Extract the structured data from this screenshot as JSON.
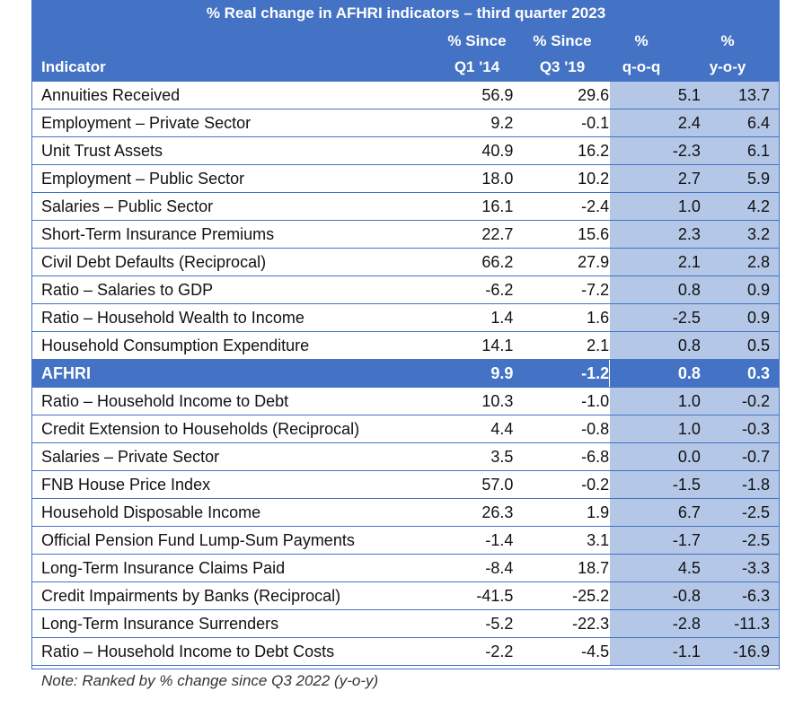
{
  "chart_data": {
    "type": "table",
    "title": "% Real change in AFHRI indicators – third quarter 2023",
    "columns": [
      {
        "key": "indicator",
        "line1": "",
        "line2": "Indicator"
      },
      {
        "key": "q1_14",
        "line1": "% Since",
        "line2": "Q1 '14"
      },
      {
        "key": "q3_19",
        "line1": "% Since",
        "line2": "Q3 '19"
      },
      {
        "key": "qoq",
        "line1": "%",
        "line2": "q-o-q"
      },
      {
        "key": "yoy",
        "line1": "%",
        "line2": "y-o-y"
      }
    ],
    "rows": [
      {
        "name": "Annuities Received",
        "q1_14": "56.9",
        "q3_19": "29.6",
        "qoq": "5.1",
        "yoy": "13.7"
      },
      {
        "name": "Employment – Private Sector",
        "q1_14": "9.2",
        "q3_19": "-0.1",
        "qoq": "2.4",
        "yoy": "6.4"
      },
      {
        "name": "Unit Trust Assets",
        "q1_14": "40.9",
        "q3_19": "16.2",
        "qoq": "-2.3",
        "yoy": "6.1"
      },
      {
        "name": "Employment – Public Sector",
        "q1_14": "18.0",
        "q3_19": "10.2",
        "qoq": "2.7",
        "yoy": "5.9"
      },
      {
        "name": "Salaries – Public Sector",
        "q1_14": "16.1",
        "q3_19": "-2.4",
        "qoq": "1.0",
        "yoy": "4.2"
      },
      {
        "name": "Short-Term Insurance Premiums",
        "q1_14": "22.7",
        "q3_19": "15.6",
        "qoq": "2.3",
        "yoy": "3.2"
      },
      {
        "name": "Civil Debt Defaults (Reciprocal)",
        "q1_14": "66.2",
        "q3_19": "27.9",
        "qoq": "2.1",
        "yoy": "2.8"
      },
      {
        "name": "Ratio – Salaries to GDP",
        "q1_14": "-6.2",
        "q3_19": "-7.2",
        "qoq": "0.8",
        "yoy": "0.9"
      },
      {
        "name": "Ratio – Household Wealth to Income",
        "q1_14": "1.4",
        "q3_19": "1.6",
        "qoq": "-2.5",
        "yoy": "0.9"
      },
      {
        "name": "Household Consumption Expenditure",
        "q1_14": "14.1",
        "q3_19": "2.1",
        "qoq": "0.8",
        "yoy": "0.5"
      },
      {
        "name": "AFHRI",
        "q1_14": "9.9",
        "q3_19": "-1.2",
        "qoq": "0.8",
        "yoy": "0.3",
        "highlight": true
      },
      {
        "name": "Ratio – Household Income to Debt",
        "q1_14": "10.3",
        "q3_19": "-1.0",
        "qoq": "1.0",
        "yoy": "-0.2"
      },
      {
        "name": "Credit Extension to Households (Reciprocal)",
        "q1_14": "4.4",
        "q3_19": "-0.8",
        "qoq": "1.0",
        "yoy": "-0.3"
      },
      {
        "name": "Salaries – Private Sector",
        "q1_14": "3.5",
        "q3_19": "-6.8",
        "qoq": "0.0",
        "yoy": "-0.7"
      },
      {
        "name": "FNB House Price Index",
        "q1_14": "57.0",
        "q3_19": "-0.2",
        "qoq": "-1.5",
        "yoy": "-1.8"
      },
      {
        "name": "Household Disposable Income",
        "q1_14": "26.3",
        "q3_19": "1.9",
        "qoq": "6.7",
        "yoy": "-2.5"
      },
      {
        "name": "Official Pension Fund Lump-Sum Payments",
        "q1_14": "-1.4",
        "q3_19": "3.1",
        "qoq": "-1.7",
        "yoy": "-2.5"
      },
      {
        "name": "Long-Term Insurance Claims Paid",
        "q1_14": "-8.4",
        "q3_19": "18.7",
        "qoq": "4.5",
        "yoy": "-3.3"
      },
      {
        "name": "Credit Impairments by Banks (Reciprocal)",
        "q1_14": "-41.5",
        "q3_19": "-25.2",
        "qoq": "-0.8",
        "yoy": "-6.3"
      },
      {
        "name": "Long-Term Insurance Surrenders",
        "q1_14": "-5.2",
        "q3_19": "-22.3",
        "qoq": "-2.8",
        "yoy": "-11.3"
      },
      {
        "name": "Ratio – Household Income to Debt Costs",
        "q1_14": "-2.2",
        "q3_19": "-4.5",
        "qoq": "-1.1",
        "yoy": "-16.9"
      }
    ],
    "note": "Note: Ranked by % change since Q3 2022 (y-o-y)",
    "colors": {
      "header": "#4472c4",
      "shade": "#b4c7e7"
    }
  }
}
